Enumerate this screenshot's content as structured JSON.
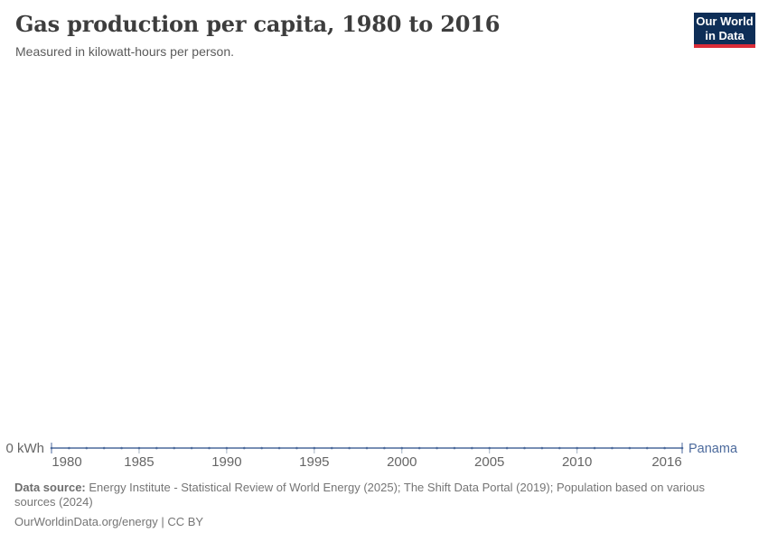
{
  "logo": {
    "line1": "Our World",
    "line2": "in Data",
    "bg_color": "#0E2E57",
    "accent_color": "#DA2C38",
    "text_color": "#FFFFFF"
  },
  "chart_data": {
    "type": "line",
    "title": "Gas production per capita, 1980 to 2016",
    "subtitle": "Measured in kilowatt-hours per person.",
    "unit": "kilowatt-hours per person",
    "grid": false,
    "legend_position": "right-of-line",
    "y_axis_label": "0 kWh",
    "ylim": [
      0,
      0
    ],
    "x_ticks": [
      1980,
      1985,
      1990,
      1995,
      2000,
      2005,
      2010,
      2016
    ],
    "x": [
      1980,
      1981,
      1982,
      1983,
      1984,
      1985,
      1986,
      1987,
      1988,
      1989,
      1990,
      1991,
      1992,
      1993,
      1994,
      1995,
      1996,
      1997,
      1998,
      1999,
      2000,
      2001,
      2002,
      2003,
      2004,
      2005,
      2006,
      2007,
      2008,
      2009,
      2010,
      2011,
      2012,
      2013,
      2014,
      2015,
      2016
    ],
    "series": [
      {
        "name": "Panama",
        "color": "#4C6A9C",
        "values": [
          0,
          0,
          0,
          0,
          0,
          0,
          0,
          0,
          0,
          0,
          0,
          0,
          0,
          0,
          0,
          0,
          0,
          0,
          0,
          0,
          0,
          0,
          0,
          0,
          0,
          0,
          0,
          0,
          0,
          0,
          0,
          0,
          0,
          0,
          0,
          0,
          0
        ]
      }
    ],
    "axis_text_color": "#666666",
    "tick_color": "#A5B3C4"
  },
  "footer": {
    "data_source_label": "Data source:",
    "data_source_text": "Energy Institute - Statistical Review of World Energy (2025); The Shift Data Portal (2019); Population based on various sources (2024)",
    "attribution": "OurWorldinData.org/energy | CC BY"
  }
}
